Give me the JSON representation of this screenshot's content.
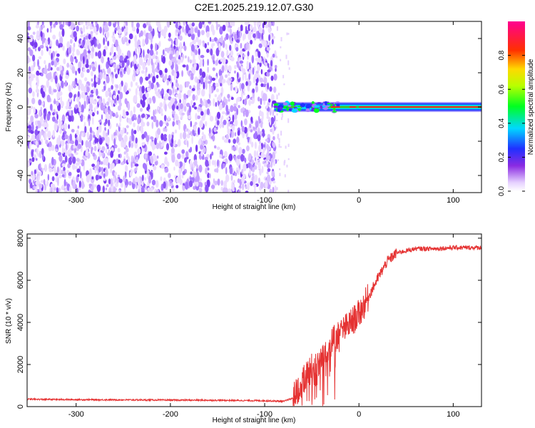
{
  "chart_data": [
    {
      "type": "heatmap",
      "title": "C2E1.2025.219.12.07.G30",
      "xlabel": "Height of straight line (km)",
      "ylabel": "Frequency (Hz)",
      "xlim": [
        -352,
        130
      ],
      "ylim": [
        -50,
        50
      ],
      "xticks": [
        -300,
        -200,
        -100,
        0,
        100
      ],
      "yticks": [
        -40,
        -20,
        0,
        20,
        40
      ],
      "colorbar": {
        "label": "Normalized spectral amplitude",
        "range": [
          0,
          1
        ],
        "ticks": [
          0.0,
          0.2,
          0.4,
          0.6,
          0.8
        ],
        "tick_labels": [
          "0.0",
          "0.2",
          "0.4",
          "0.6",
          "0.8"
        ],
        "colormap": "rainbow (white-violet-blue-cyan-green-yellow-red-magenta)"
      },
      "regions": [
        {
          "x_range": [
            -352,
            -88
          ],
          "frequency_range": [
            -50,
            50
          ],
          "amplitude": "0.05-0.25 noise"
        },
        {
          "x_range": [
            -90,
            130
          ],
          "center_frequency": 0,
          "half_width_hz": 3,
          "peak_amplitude": 1.0
        }
      ],
      "grid": false
    },
    {
      "type": "line",
      "xlabel": "Height of straight line (km)",
      "ylabel": "SNR (10 * v/v)",
      "xlim": [
        -352,
        130
      ],
      "ylim": [
        0,
        8200
      ],
      "xticks": [
        -300,
        -200,
        -100,
        0,
        100
      ],
      "yticks": [
        0,
        2000,
        4000,
        6000,
        8000
      ],
      "color": "#e53232",
      "x": [
        -352,
        -300,
        -250,
        -200,
        -150,
        -100,
        -80,
        -70,
        -60,
        -50,
        -40,
        -30,
        -20,
        -10,
        0,
        10,
        20,
        30,
        40,
        60,
        80,
        100,
        130
      ],
      "y": [
        350,
        330,
        320,
        310,
        300,
        280,
        250,
        400,
        1200,
        1900,
        2400,
        3000,
        3500,
        3900,
        4400,
        5200,
        6100,
        6900,
        7300,
        7500,
        7500,
        7550,
        7550
      ],
      "grid": false
    }
  ]
}
